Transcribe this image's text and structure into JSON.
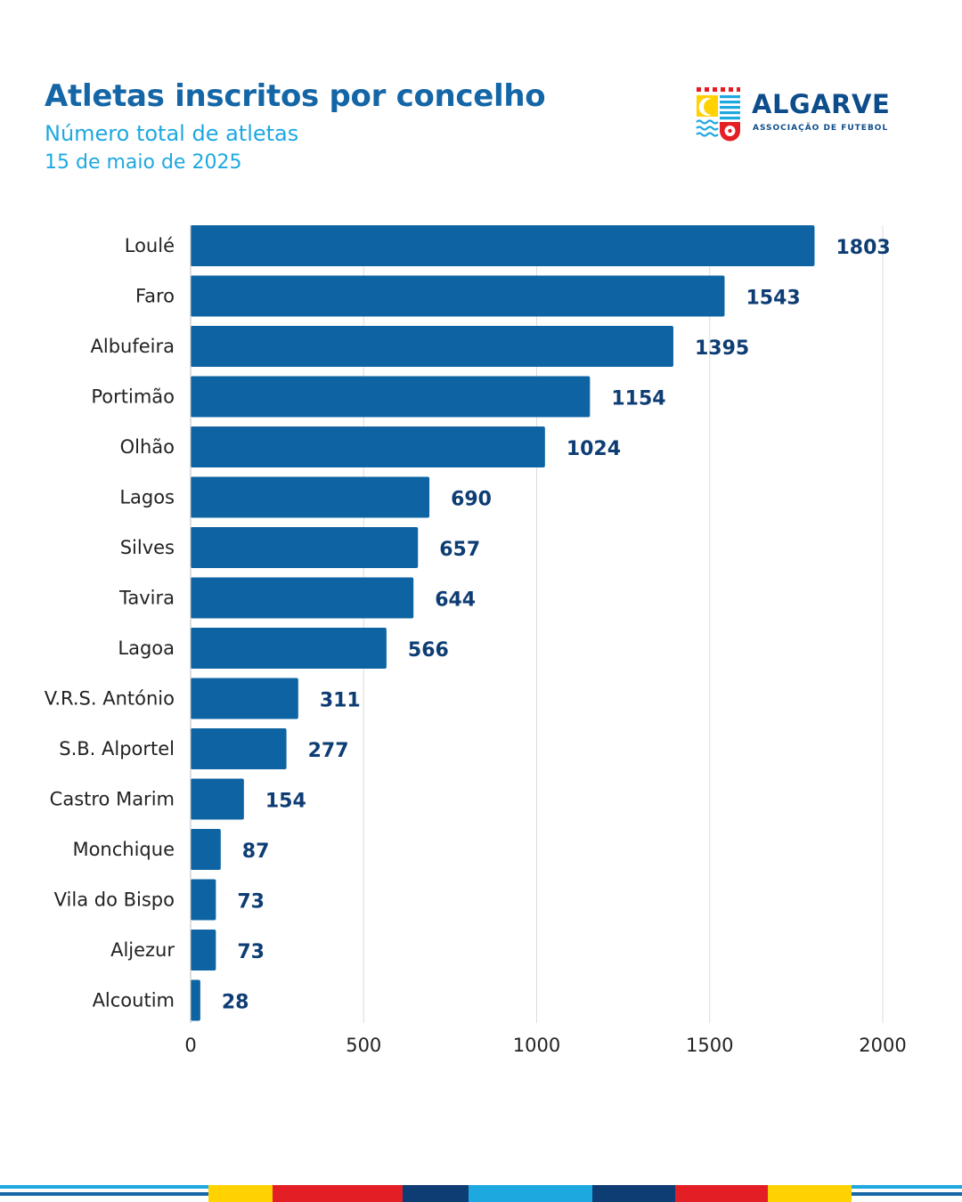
{
  "header": {
    "title": "Atletas inscritos por concelho",
    "subtitle": "Número total de atletas",
    "date": "15 de maio de 2025"
  },
  "logo": {
    "name": "ALGARVE",
    "tagline": "ASSOCIAÇÃO DE FUTEBOL"
  },
  "colors": {
    "bar": "#0e64a3",
    "value_label": "#0e3d74",
    "title": "#1466a6",
    "subtitle": "#1ea8e0",
    "grid": "#dcdcdc"
  },
  "footer_stripe_colors": [
    "#1ea8e0",
    "#ffd200",
    "#e31e24",
    "#0e3d74",
    "#1ea8e0",
    "#0e3d74",
    "#e31e24",
    "#ffd200",
    "#1ea8e0"
  ],
  "chart_data": {
    "type": "bar",
    "orientation": "horizontal",
    "title": "Atletas inscritos por concelho",
    "subtitle": "Número total de atletas",
    "xlabel": "",
    "ylabel": "",
    "xlim": [
      0,
      2000
    ],
    "x_ticks": [
      0,
      500,
      1000,
      1500,
      2000
    ],
    "grid": "vertical",
    "legend": "none",
    "categories": [
      "Loulé",
      "Faro",
      "Albufeira",
      "Portimão",
      "Olhão",
      "Lagos",
      "Silves",
      "Tavira",
      "Lagoa",
      "V.R.S. António",
      "S.B. Alportel",
      "Castro Marim",
      "Monchique",
      "Vila do Bispo",
      "Aljezur",
      "Alcoutim"
    ],
    "values": [
      1803,
      1543,
      1395,
      1154,
      1024,
      690,
      657,
      644,
      566,
      311,
      277,
      154,
      87,
      73,
      73,
      28
    ]
  }
}
